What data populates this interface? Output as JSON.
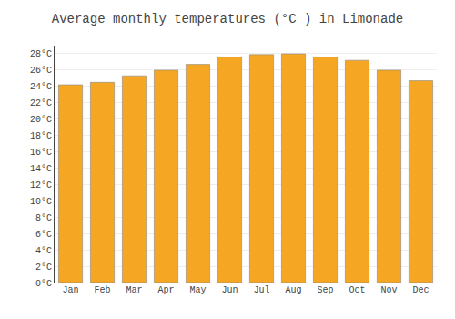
{
  "chart_data": {
    "type": "bar",
    "title": "Average monthly temperatures (°C ) in Limonade",
    "categories": [
      "Jan",
      "Feb",
      "Mar",
      "Apr",
      "May",
      "Jun",
      "Jul",
      "Aug",
      "Sep",
      "Oct",
      "Nov",
      "Dec"
    ],
    "values": [
      24.2,
      24.5,
      25.3,
      26.0,
      26.7,
      27.6,
      27.9,
      28.0,
      27.6,
      27.2,
      26.0,
      24.7
    ],
    "color": "#F5A623",
    "ylim": [
      0,
      29
    ],
    "yticks": [
      {
        "value": 0,
        "label": "0°C"
      },
      {
        "value": 2,
        "label": "2°C"
      },
      {
        "value": 4,
        "label": "4°C"
      },
      {
        "value": 6,
        "label": "6°C"
      },
      {
        "value": 8,
        "label": "8°C"
      },
      {
        "value": 10,
        "label": "10°C"
      },
      {
        "value": 12,
        "label": "12°C"
      },
      {
        "value": 14,
        "label": "14°C"
      },
      {
        "value": 16,
        "label": "16°C"
      },
      {
        "value": 18,
        "label": "18°C"
      },
      {
        "value": 20,
        "label": "20°C"
      },
      {
        "value": 22,
        "label": "22°C"
      },
      {
        "value": 24,
        "label": "24°C"
      },
      {
        "value": 26,
        "label": "26°C"
      },
      {
        "value": 28,
        "label": "28°C"
      }
    ],
    "grid": true
  }
}
